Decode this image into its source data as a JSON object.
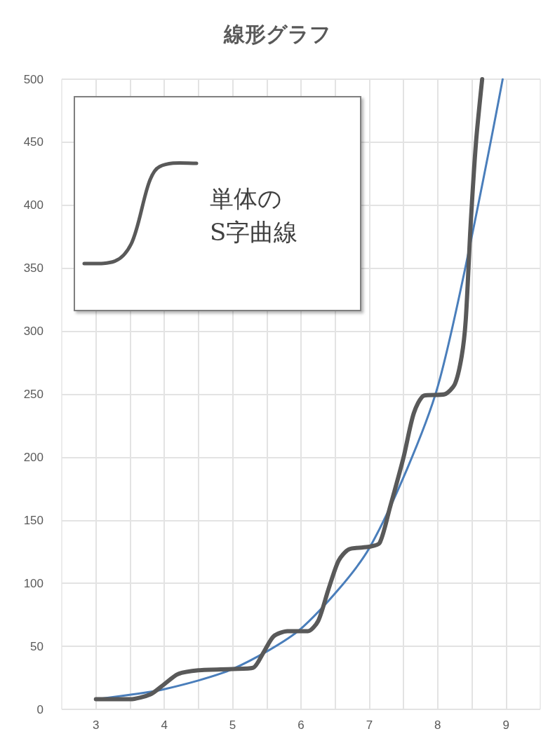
{
  "chart_data": {
    "type": "line",
    "title": "線形グラフ",
    "annotations": [
      "単体の\nS字曲線"
    ],
    "xlim": [
      2.5,
      9.5
    ],
    "xticks": [
      3,
      {
        "value": 3.5,
        "label": null
      },
      4,
      {
        "value": 4.5,
        "label": null
      },
      5,
      {
        "value": 5.5,
        "label": null
      },
      6,
      {
        "value": 6.5,
        "label": null
      },
      7,
      {
        "value": 7.5,
        "label": null
      },
      8,
      {
        "value": 8.5,
        "label": null
      },
      9
    ],
    "ylim": [
      0,
      500
    ],
    "yticks": [
      0,
      50,
      100,
      150,
      200,
      250,
      300,
      350,
      400,
      450,
      500
    ],
    "grid": true,
    "marker": "none",
    "line_style": "solid",
    "series": [
      {
        "color": "#4a7ebb",
        "x": [
          3,
          4,
          5,
          6,
          7,
          8,
          8.95
        ],
        "values": [
          8,
          16,
          32,
          64,
          128,
          256,
          500
        ]
      },
      {
        "color": "#595959",
        "x": [
          3,
          3.5,
          3.8,
          4,
          4.2,
          4.5,
          5,
          5.3,
          5.45,
          5.6,
          5.8,
          6.1,
          6.25,
          6.4,
          6.55,
          6.7,
          7,
          7.15,
          7.3,
          7.5,
          7.65,
          7.8,
          8.1,
          8.25,
          8.35,
          8.41,
          8.48,
          8.56,
          8.65
        ],
        "values": [
          8,
          8,
          12,
          20,
          28,
          31,
          32,
          33,
          45,
          58,
          62,
          62,
          70,
          95,
          118,
          127,
          129,
          132,
          160,
          200,
          235,
          249,
          250,
          258,
          280,
          309,
          383,
          450,
          500
        ]
      }
    ]
  }
}
